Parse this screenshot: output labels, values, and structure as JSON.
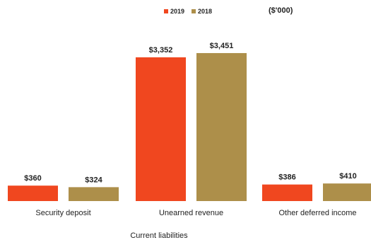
{
  "chart_data": {
    "type": "bar",
    "categories": [
      "Security deposit",
      "Unearned revenue",
      "Other deferred income"
    ],
    "series": [
      {
        "name": "2019",
        "values": [
          360,
          3352,
          386
        ],
        "labels": [
          "$360",
          "$3,352",
          "$386"
        ],
        "color": "#f0471f"
      },
      {
        "name": "2018",
        "values": [
          324,
          3451,
          410
        ],
        "labels": [
          "$324",
          "$3,451",
          "$410"
        ],
        "color": "#ad8f4a"
      }
    ],
    "units": "($'000)",
    "xlabel": "Current liabilities",
    "ylim": [
      0,
      3500
    ],
    "legend_position": "top-center",
    "grid": false
  }
}
